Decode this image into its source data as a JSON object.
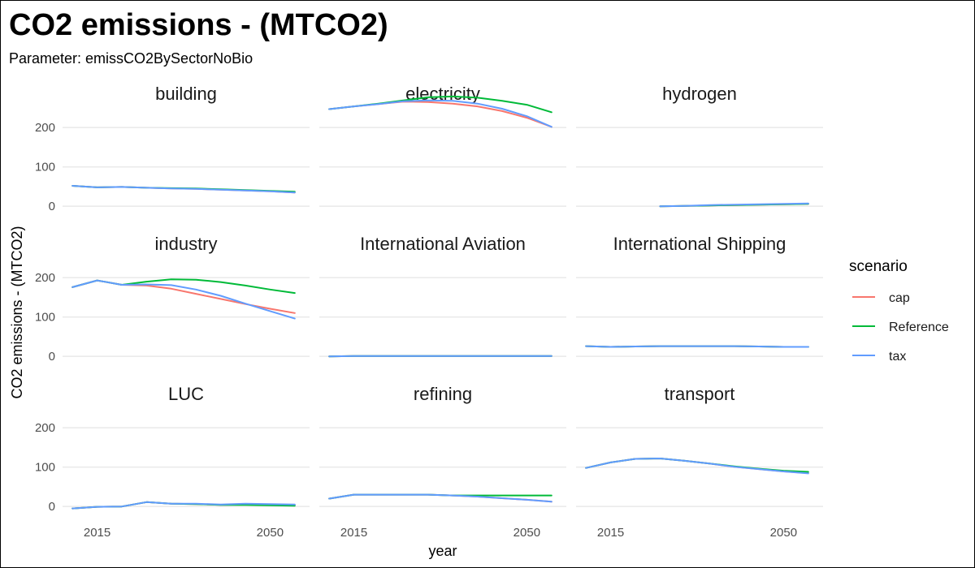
{
  "chart_data": {
    "type": "line",
    "title": "CO2 emissions - (MTCO2)",
    "subtitle": "Parameter: emissCO2BySectorNoBio",
    "xlabel": "year",
    "ylabel": "CO2 emissions - (MTCO2)",
    "xlim": [
      2008,
      2058
    ],
    "ylim": [
      -10,
      250
    ],
    "x_ticks": [
      2015,
      2050
    ],
    "y_ticks": [
      0,
      100,
      200
    ],
    "grid": true,
    "legend_position": "right",
    "legend": {
      "title": "scenario",
      "entries": [
        {
          "label": "cap",
          "color": "#F8766D"
        },
        {
          "label": "Reference",
          "color": "#00BA38"
        },
        {
          "label": "tax",
          "color": "#619CFF"
        }
      ]
    },
    "panels": [
      {
        "name": "building",
        "series": [
          {
            "scenario": "cap",
            "x": [
              2010,
              2015,
              2020,
              2025,
              2030,
              2035,
              2040,
              2045,
              2050,
              2055
            ],
            "y": [
              52,
              48,
              49,
              47,
              45,
              44,
              42,
              40,
              38,
              35
            ]
          },
          {
            "scenario": "Reference",
            "x": [
              2010,
              2015,
              2020,
              2025,
              2030,
              2035,
              2040,
              2045,
              2050,
              2055
            ],
            "y": [
              52,
              48,
              49,
              47,
              46,
              45,
              43,
              41,
              39,
              37
            ]
          },
          {
            "scenario": "tax",
            "x": [
              2010,
              2015,
              2020,
              2025,
              2030,
              2035,
              2040,
              2045,
              2050,
              2055
            ],
            "y": [
              52,
              48,
              49,
              47,
              45,
              44,
              42,
              40,
              38,
              35
            ]
          }
        ]
      },
      {
        "name": "electricity",
        "series": [
          {
            "scenario": "cap",
            "x": [
              2010,
              2015,
              2020,
              2025,
              2030,
              2035,
              2040,
              2045,
              2050,
              2055
            ],
            "y": [
              247,
              254,
              260,
              266,
              265,
              261,
              254,
              242,
              225,
              202
            ]
          },
          {
            "scenario": "Reference",
            "x": [
              2010,
              2015,
              2020,
              2025,
              2030,
              2035,
              2040,
              2045,
              2050,
              2055
            ],
            "y": [
              247,
              254,
              261,
              269,
              277,
              279,
              276,
              268,
              258,
              239
            ]
          },
          {
            "scenario": "tax",
            "x": [
              2010,
              2015,
              2020,
              2025,
              2030,
              2035,
              2040,
              2045,
              2050,
              2055
            ],
            "y": [
              247,
              254,
              260,
              267,
              269,
              268,
              261,
              248,
              229,
              202
            ]
          }
        ]
      },
      {
        "name": "hydrogen",
        "series": [
          {
            "scenario": "cap",
            "x": [
              2025,
              2030,
              2035,
              2040,
              2045,
              2050,
              2055
            ],
            "y": [
              0,
              1,
              2,
              3,
              4,
              5,
              6
            ]
          },
          {
            "scenario": "Reference",
            "x": [
              2025,
              2030,
              2035,
              2040,
              2045,
              2050,
              2055
            ],
            "y": [
              0,
              1,
              2,
              3,
              4,
              5,
              6
            ]
          },
          {
            "scenario": "tax",
            "x": [
              2025,
              2030,
              2035,
              2040,
              2045,
              2050,
              2055
            ],
            "y": [
              0,
              1,
              3,
              4,
              5,
              6,
              7
            ]
          }
        ]
      },
      {
        "name": "industry",
        "series": [
          {
            "scenario": "cap",
            "x": [
              2010,
              2015,
              2020,
              2025,
              2030,
              2035,
              2040,
              2045,
              2050,
              2055
            ],
            "y": [
              176,
              193,
              182,
              180,
              172,
              159,
              146,
              133,
              121,
              110
            ]
          },
          {
            "scenario": "Reference",
            "x": [
              2010,
              2015,
              2020,
              2025,
              2030,
              2035,
              2040,
              2045,
              2050,
              2055
            ],
            "y": [
              176,
              193,
              182,
              190,
              196,
              195,
              189,
              180,
              170,
              161
            ]
          },
          {
            "scenario": "tax",
            "x": [
              2010,
              2015,
              2020,
              2025,
              2030,
              2035,
              2040,
              2045,
              2050,
              2055
            ],
            "y": [
              176,
              193,
              182,
              183,
              181,
              170,
              154,
              134,
              115,
              96
            ]
          }
        ]
      },
      {
        "name": "International Aviation",
        "series": [
          {
            "scenario": "cap",
            "x": [
              2010,
              2015,
              2020,
              2025,
              2030,
              2035,
              2040,
              2045,
              2050,
              2055
            ],
            "y": [
              0,
              1,
              1,
              1,
              1,
              1,
              1,
              1,
              1,
              1
            ]
          },
          {
            "scenario": "Reference",
            "x": [
              2010,
              2015,
              2020,
              2025,
              2030,
              2035,
              2040,
              2045,
              2050,
              2055
            ],
            "y": [
              0,
              1,
              1,
              1,
              1,
              1,
              1,
              1,
              1,
              1
            ]
          },
          {
            "scenario": "tax",
            "x": [
              2010,
              2015,
              2020,
              2025,
              2030,
              2035,
              2040,
              2045,
              2050,
              2055
            ],
            "y": [
              0,
              1,
              1,
              1,
              1,
              1,
              1,
              1,
              1,
              1
            ]
          }
        ]
      },
      {
        "name": "International Shipping",
        "series": [
          {
            "scenario": "cap",
            "x": [
              2010,
              2015,
              2020,
              2025,
              2030,
              2035,
              2040,
              2045,
              2050,
              2055
            ],
            "y": [
              26,
              24,
              25,
              26,
              26,
              26,
              26,
              25,
              24,
              24
            ]
          },
          {
            "scenario": "Reference",
            "x": [
              2010,
              2015,
              2020,
              2025,
              2030,
              2035,
              2040,
              2045,
              2050,
              2055
            ],
            "y": [
              26,
              24,
              25,
              26,
              26,
              26,
              26,
              25,
              24,
              24
            ]
          },
          {
            "scenario": "tax",
            "x": [
              2010,
              2015,
              2020,
              2025,
              2030,
              2035,
              2040,
              2045,
              2050,
              2055
            ],
            "y": [
              26,
              24,
              25,
              26,
              26,
              26,
              26,
              25,
              24,
              24
            ]
          }
        ]
      },
      {
        "name": "LUC",
        "series": [
          {
            "scenario": "cap",
            "x": [
              2010,
              2015,
              2020,
              2025,
              2030,
              2035,
              2040,
              2045,
              2050,
              2055
            ],
            "y": [
              -5,
              -1,
              0,
              11,
              7,
              6,
              4,
              5,
              5,
              4
            ]
          },
          {
            "scenario": "Reference",
            "x": [
              2010,
              2015,
              2020,
              2025,
              2030,
              2035,
              2040,
              2045,
              2050,
              2055
            ],
            "y": [
              -5,
              -1,
              0,
              11,
              7,
              6,
              4,
              4,
              3,
              2
            ]
          },
          {
            "scenario": "tax",
            "x": [
              2010,
              2015,
              2020,
              2025,
              2030,
              2035,
              2040,
              2045,
              2050,
              2055
            ],
            "y": [
              -5,
              -1,
              0,
              11,
              7,
              7,
              5,
              7,
              6,
              5
            ]
          }
        ]
      },
      {
        "name": "refining",
        "series": [
          {
            "scenario": "cap",
            "x": [
              2010,
              2015,
              2020,
              2025,
              2030,
              2035,
              2040,
              2045,
              2050,
              2055
            ],
            "y": [
              20,
              30,
              30,
              30,
              30,
              28,
              25,
              21,
              17,
              12
            ]
          },
          {
            "scenario": "Reference",
            "x": [
              2010,
              2015,
              2020,
              2025,
              2030,
              2035,
              2040,
              2045,
              2050,
              2055
            ],
            "y": [
              20,
              30,
              30,
              30,
              30,
              28,
              28,
              28,
              28,
              28
            ]
          },
          {
            "scenario": "tax",
            "x": [
              2010,
              2015,
              2020,
              2025,
              2030,
              2035,
              2040,
              2045,
              2050,
              2055
            ],
            "y": [
              20,
              30,
              30,
              30,
              30,
              28,
              25,
              21,
              17,
              12
            ]
          }
        ]
      },
      {
        "name": "transport",
        "series": [
          {
            "scenario": "cap",
            "x": [
              2010,
              2015,
              2020,
              2025,
              2030,
              2035,
              2040,
              2045,
              2050,
              2055
            ],
            "y": [
              98,
              112,
              121,
              122,
              116,
              109,
              101,
              95,
              89,
              85
            ]
          },
          {
            "scenario": "Reference",
            "x": [
              2010,
              2015,
              2020,
              2025,
              2030,
              2035,
              2040,
              2045,
              2050,
              2055
            ],
            "y": [
              98,
              112,
              121,
              122,
              116,
              109,
              102,
              96,
              91,
              88
            ]
          },
          {
            "scenario": "tax",
            "x": [
              2010,
              2015,
              2020,
              2025,
              2030,
              2035,
              2040,
              2045,
              2050,
              2055
            ],
            "y": [
              98,
              112,
              121,
              122,
              116,
              109,
              101,
              95,
              89,
              84
            ]
          }
        ]
      }
    ]
  }
}
